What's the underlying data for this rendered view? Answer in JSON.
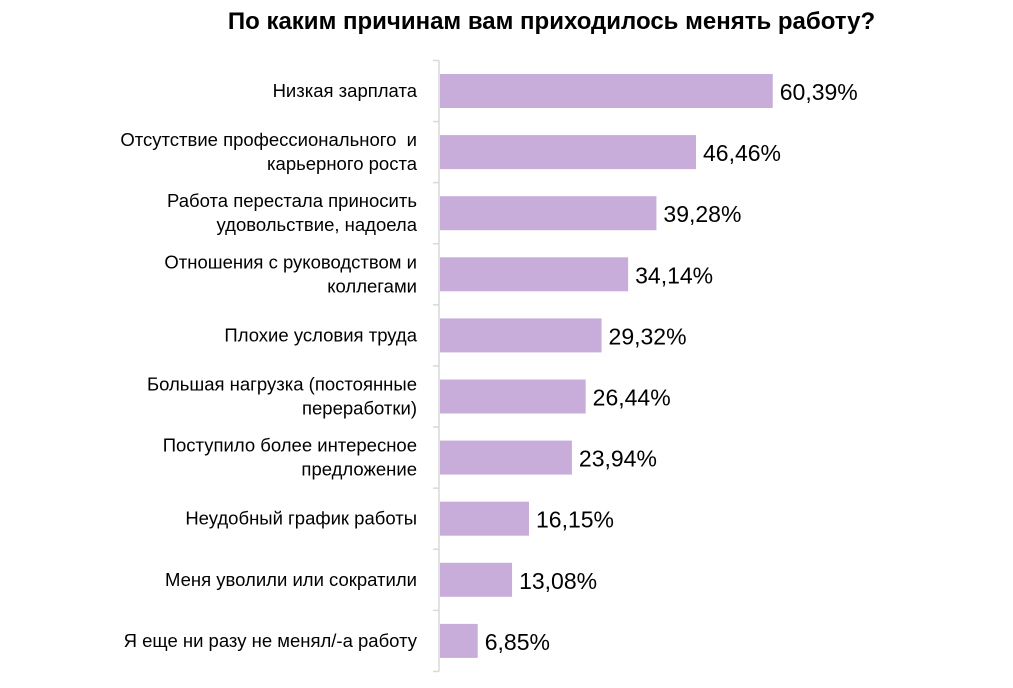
{
  "chart_data": {
    "type": "bar",
    "orientation": "horizontal",
    "title": "По каким причинам вам приходилось менять работу?",
    "categories": [
      [
        "Низкая зарплата"
      ],
      [
        "Отсутствие профессионального  и",
        "карьерного роста"
      ],
      [
        "Работа перестала приносить",
        "удовольствие, надоела"
      ],
      [
        "Отношения с руководством и",
        "коллегами"
      ],
      [
        "Плохие условия труда"
      ],
      [
        "Большая нагрузка (постоянные",
        "переработки)"
      ],
      [
        "Поступило более интересное",
        "предложение"
      ],
      [
        "Неудобный график работы"
      ],
      [
        "Меня уволили или сократили"
      ],
      [
        "Я еще ни разу не менял/-а работу"
      ]
    ],
    "values": [
      60.39,
      46.46,
      39.28,
      34.14,
      29.32,
      26.44,
      23.94,
      16.15,
      13.08,
      6.85
    ],
    "data_labels": [
      "60,39%",
      "46,46%",
      "39,28%",
      "34,14%",
      "29,32%",
      "26,44%",
      "23,94%",
      "16,15%",
      "13,08%",
      "6,85%"
    ],
    "bar_color": "#c8addb",
    "axis_color": "#d9d9d9",
    "xlabel": "",
    "ylabel": "",
    "grid": false,
    "legend": "none"
  }
}
